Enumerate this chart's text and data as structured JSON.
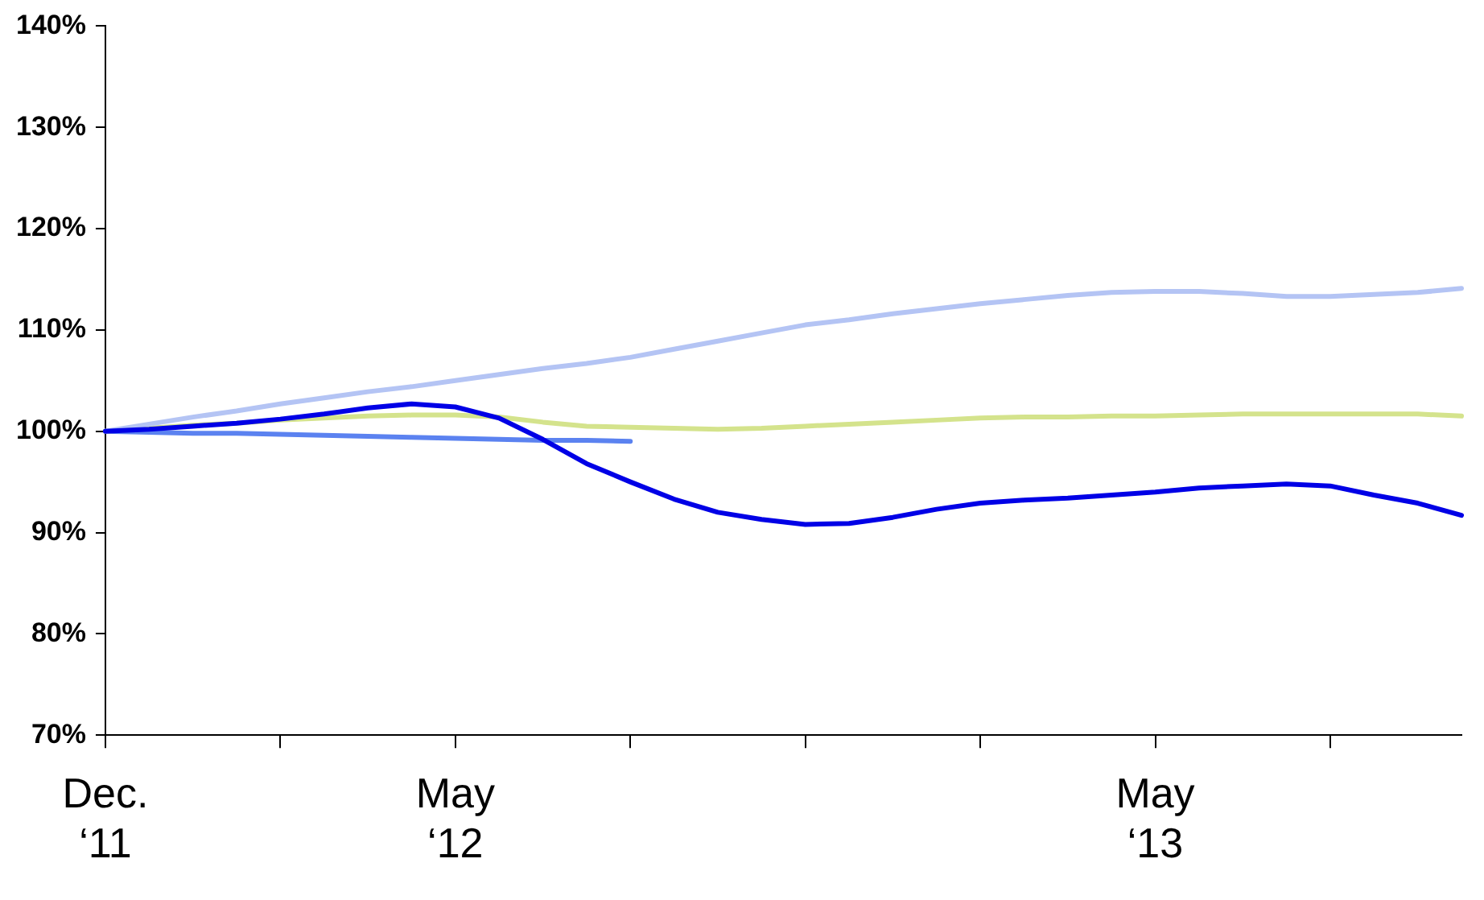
{
  "chart_data": {
    "type": "line",
    "categories": [
      "Dec. ‘11",
      null,
      null,
      null,
      null,
      null,
      null,
      null,
      "May ‘12",
      null,
      null,
      null,
      null,
      null,
      null,
      null,
      null,
      null,
      null,
      null,
      null,
      null,
      null,
      null,
      "May ‘13",
      null,
      null,
      null,
      null,
      null,
      null,
      null
    ],
    "series": [
      {
        "color": "#0000e6",
        "values": [
          100,
          100.2,
          100.5,
          100.8,
          101.2,
          101.7,
          102.3,
          102.7,
          102.4,
          101.3,
          99.2,
          96.8,
          95,
          93.3,
          92,
          91.3,
          90.8,
          90.9,
          91.5,
          92.3,
          92.9,
          93.2,
          93.4,
          93.7,
          94,
          94.4,
          94.6,
          94.8,
          94.6,
          93.7,
          92.9,
          91.7
        ]
      },
      {
        "color": "#b4c4f4",
        "values": [
          100,
          100.7,
          101.4,
          102,
          102.7,
          103.3,
          103.9,
          104.4,
          105,
          105.6,
          106.2,
          106.7,
          107.3,
          108.1,
          108.9,
          109.7,
          110.5,
          111,
          111.6,
          112.1,
          112.6,
          113,
          113.4,
          113.7,
          113.8,
          113.8,
          113.6,
          113.3,
          113.3,
          113.5,
          113.7,
          114.1
        ]
      },
      {
        "color": "#d4e38c",
        "values": [
          100,
          100.3,
          100.6,
          100.8,
          101.1,
          101.3,
          101.5,
          101.6,
          101.6,
          101.4,
          100.9,
          100.5,
          100.4,
          100.3,
          100.2,
          100.3,
          100.5,
          100.7,
          100.9,
          101.1,
          101.3,
          101.4,
          101.4,
          101.5,
          101.5,
          101.6,
          101.7,
          101.7,
          101.7,
          101.7,
          101.7,
          101.5
        ]
      },
      {
        "color": "#5b82f0",
        "values": [
          100,
          99.9,
          99.8,
          99.8,
          99.7,
          99.6,
          99.5,
          99.4,
          99.3,
          99.2,
          99.1,
          99.1,
          99,
          null,
          null,
          null,
          null,
          null,
          null,
          null,
          null,
          null,
          null,
          null,
          null,
          null,
          null,
          null,
          null,
          null,
          null,
          null
        ]
      }
    ],
    "ylim": [
      70,
      140
    ],
    "yticks": [
      {
        "value": 70,
        "label": "70%"
      },
      {
        "value": 80,
        "label": "80%"
      },
      {
        "value": 90,
        "label": "90%"
      },
      {
        "value": 100,
        "label": "100%"
      },
      {
        "value": 110,
        "label": "110%"
      },
      {
        "value": 120,
        "label": "120%"
      },
      {
        "value": 130,
        "label": "130%"
      },
      {
        "value": 140,
        "label": "140%"
      }
    ],
    "grid": false,
    "legend": false,
    "marker": "none",
    "line_style": "solid"
  }
}
